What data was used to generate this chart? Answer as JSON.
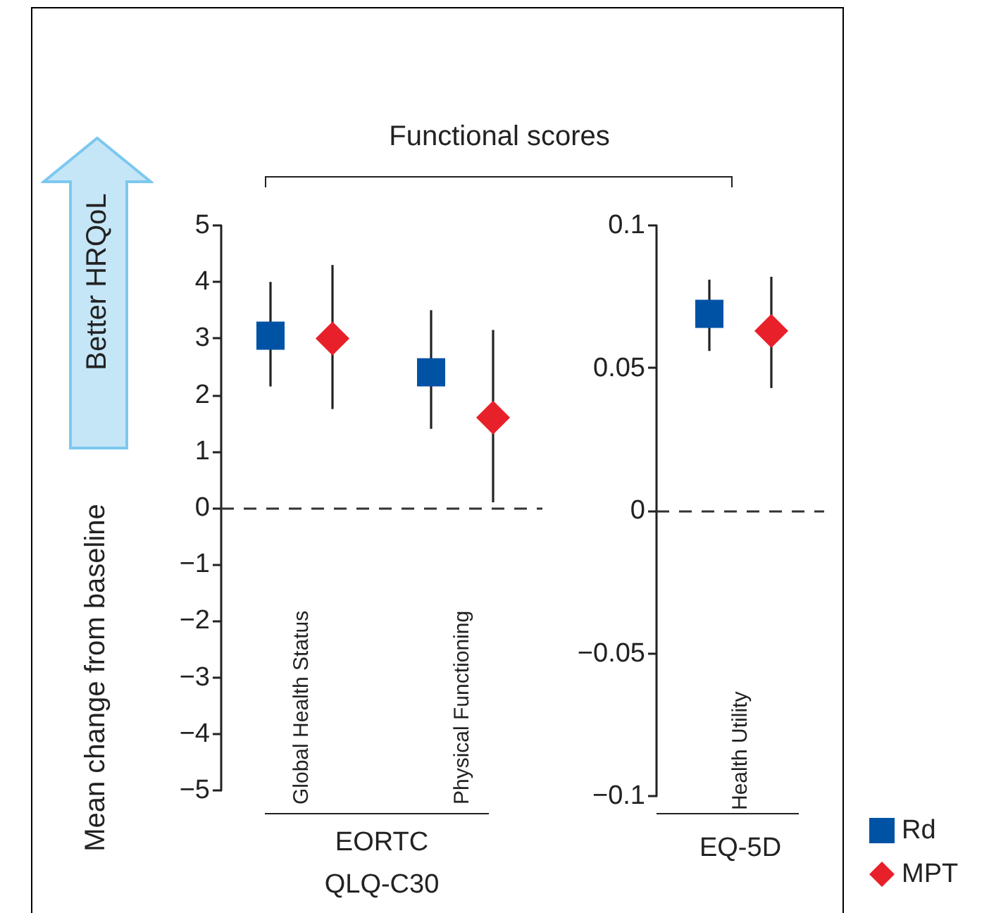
{
  "chart_data": [
    {
      "type": "scatter",
      "ylabel": "Mean change from baseline",
      "xlabel": "EORTC QLQ-C30",
      "annotations": [
        "Functional scores",
        "Better HRQoL"
      ],
      "categories": [
        "Global Health Status",
        "Physical Functioning"
      ],
      "series": [
        {
          "color": "#0052a5",
          "marker": "square",
          "values": [
            3.05,
            2.4
          ],
          "errors": [
            [
              2.15,
              4.0
            ],
            [
              1.4,
              3.5
            ]
          ]
        },
        {
          "color": "#e8202a",
          "marker": "diamond",
          "values": [
            3.0,
            1.6
          ],
          "errors": [
            [
              1.75,
              4.3
            ],
            [
              0.1,
              3.15
            ]
          ]
        }
      ],
      "ylim": [
        -5,
        5
      ],
      "yticks": [
        {
          "value": -5,
          "label": "−5"
        },
        {
          "value": -4,
          "label": "−4"
        },
        {
          "value": -3,
          "label": "−3"
        },
        {
          "value": -2,
          "label": "−2"
        },
        {
          "value": -1,
          "label": "−1"
        },
        0,
        1,
        2,
        3,
        4,
        5
      ],
      "ref_lines": [
        {
          "axis": "y",
          "value": 0,
          "line_style": "dashed",
          "color": "#333333"
        }
      ],
      "grid": false
    },
    {
      "type": "scatter",
      "xlabel": "EQ-5D",
      "categories": [
        "Health Utility"
      ],
      "series": [
        {
          "name": "Rd",
          "color": "#0052a5",
          "marker": "square",
          "values": [
            0.069
          ],
          "errors": [
            [
              0.056,
              0.081
            ]
          ]
        },
        {
          "name": "MPT",
          "color": "#e8202a",
          "marker": "diamond",
          "values": [
            0.063
          ],
          "errors": [
            [
              0.043,
              0.082
            ]
          ]
        }
      ],
      "ylim": [
        -0.1,
        0.1
      ],
      "yticks": [
        {
          "value": -0.1,
          "label": "−0.1"
        },
        {
          "value": -0.05,
          "label": "−0.05"
        },
        0,
        0.05,
        0.1
      ],
      "ref_lines": [
        {
          "axis": "y",
          "value": 0,
          "line_style": "dashed",
          "color": "#333333"
        }
      ],
      "grid": false,
      "legend": "bottom right"
    }
  ]
}
